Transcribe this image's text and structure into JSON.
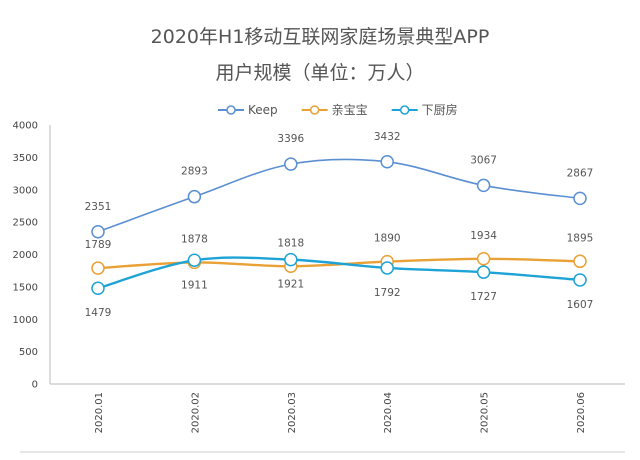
{
  "chart_data": {
    "type": "line",
    "title": "2020年H1移动互联网家庭场景典型APP",
    "subtitle": "用户规模（单位：万人）",
    "categories": [
      "2020.01",
      "2020.02",
      "2020.03",
      "2020.04",
      "2020.05",
      "2020.06"
    ],
    "ylim": [
      0,
      4000
    ],
    "yticks": [
      0,
      500,
      1000,
      1500,
      2000,
      2500,
      3000,
      3500,
      4000
    ],
    "grid": false,
    "legend": "top",
    "smooth": true,
    "series": [
      {
        "name": "Keep",
        "color": "#5a8fd2",
        "values": [
          2351,
          2893,
          3396,
          3432,
          3067,
          2867
        ],
        "label_pos": "above"
      },
      {
        "name": "亲宝宝",
        "color": "#e9a135",
        "values": [
          1789,
          1878,
          1818,
          1890,
          1934,
          1895
        ],
        "label_pos": "above"
      },
      {
        "name": "下厨房",
        "color": "#1ea3d6",
        "values": [
          1479,
          1911,
          1921,
          1792,
          1727,
          1607
        ],
        "label_pos": "below"
      }
    ]
  }
}
